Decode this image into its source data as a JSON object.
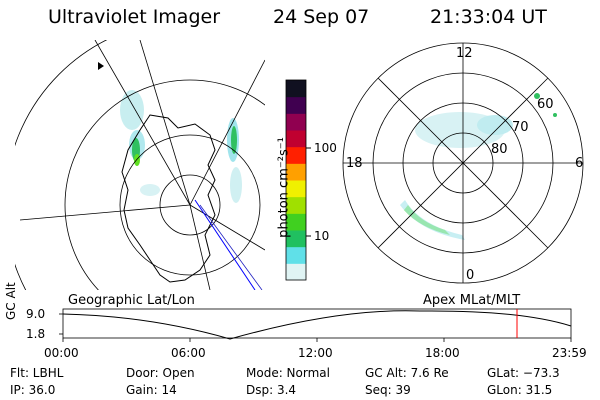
{
  "header": {
    "title": "Ultraviolet Imager",
    "date": "24 Sep 07",
    "time": "21:33:04 UT"
  },
  "colorbar": {
    "unit_label": "photon cm⁻²s⁻¹",
    "ticks": [
      "100",
      "10"
    ],
    "scale": "log",
    "colors": [
      "#e0f4f4",
      "#60e0e8",
      "#20c060",
      "#40d020",
      "#a0e000",
      "#f0f000",
      "#ffa000",
      "#ff2000",
      "#c00030",
      "#900050",
      "#400050",
      "#101020"
    ]
  },
  "polar_plot": {
    "lat_labels": [
      "60",
      "70",
      "80"
    ],
    "mlt_labels": {
      "top": "12",
      "bottom": "0",
      "left": "18",
      "right": "6"
    }
  },
  "map_titles": {
    "left": "Geographic Lat/Lon",
    "right": "Apex MLat/MLT"
  },
  "altitude_plot": {
    "ylabel": "GC Alt",
    "yticks": [
      "9.0",
      "1.8"
    ],
    "xticks": [
      "00:00",
      "06:00",
      "12:00",
      "18:00",
      "23:59"
    ],
    "current_time_marker_color": "#ff0000"
  },
  "status": {
    "flt": "Flt: LBHL",
    "ip": "IP: 36.0",
    "door": "Door: Open",
    "gain": "Gain: 14",
    "mode": "Mode: Normal",
    "dsp": "Dsp:     3.4",
    "gc_alt": "GC Alt: 7.6 Re",
    "seq": "Seq: 39",
    "glat": "GLat: −73.3",
    "glon": "GLon:  31.5"
  }
}
